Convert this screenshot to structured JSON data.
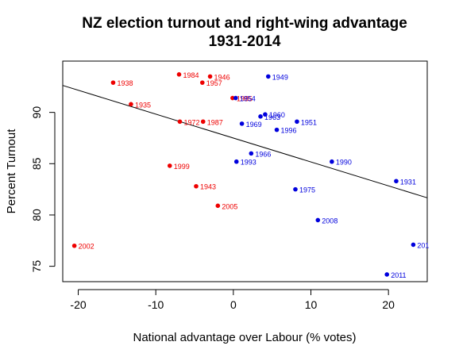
{
  "chart_data": {
    "type": "scatter",
    "title": "NZ election turnout and right-wing advantage",
    "subtitle": "1931-2014",
    "xlabel": "National advantage over Labour (% votes)",
    "ylabel": "Percent Turnout",
    "xlim": [
      -22,
      25
    ],
    "ylim": [
      73.5,
      95.0
    ],
    "xticks": [
      -20,
      -10,
      0,
      10,
      20
    ],
    "yticks": [
      75,
      80,
      85,
      90
    ],
    "grid": false,
    "legend": "none",
    "colors": {
      "left": "#ee0000",
      "right": "#0000dd",
      "line": "#000000"
    },
    "trend_line": {
      "intercept": 87.5,
      "slope": -0.233
    },
    "points": [
      {
        "label": "1984",
        "x": -7.0,
        "y": 93.7,
        "group": "left"
      },
      {
        "label": "1946",
        "x": -3.0,
        "y": 93.5,
        "group": "left"
      },
      {
        "label": "1938",
        "x": -15.5,
        "y": 92.9,
        "group": "left"
      },
      {
        "label": "1957",
        "x": -4.0,
        "y": 92.9,
        "group": "left"
      },
      {
        "label": "1935",
        "x": -13.2,
        "y": 90.8,
        "group": "left"
      },
      {
        "label": "1972",
        "x": -6.9,
        "y": 89.1,
        "group": "left"
      },
      {
        "label": "1987",
        "x": -3.9,
        "y": 89.1,
        "group": "left"
      },
      {
        "label": "1999",
        "x": -8.2,
        "y": 84.8,
        "group": "left"
      },
      {
        "label": "1943",
        "x": -4.8,
        "y": 82.8,
        "group": "left"
      },
      {
        "label": "2005",
        "x": -2.0,
        "y": 80.9,
        "group": "left"
      },
      {
        "label": "2002",
        "x": -20.5,
        "y": 77.0,
        "group": "left"
      },
      {
        "label": "1985",
        "x": -0.1,
        "y": 91.4,
        "group": "left"
      },
      {
        "label": "1949",
        "x": 4.5,
        "y": 93.5,
        "group": "right"
      },
      {
        "label": "1954",
        "x": 0.3,
        "y": 91.4,
        "group": "right"
      },
      {
        "label": "1963",
        "x": 3.5,
        "y": 89.6,
        "group": "right"
      },
      {
        "label": "1960",
        "x": 4.1,
        "y": 89.8,
        "group": "right"
      },
      {
        "label": "1951",
        "x": 8.2,
        "y": 89.1,
        "group": "right"
      },
      {
        "label": "1969",
        "x": 1.1,
        "y": 88.9,
        "group": "right"
      },
      {
        "label": "1996",
        "x": 5.6,
        "y": 88.3,
        "group": "right"
      },
      {
        "label": "1966",
        "x": 2.3,
        "y": 86.0,
        "group": "right"
      },
      {
        "label": "1993",
        "x": 0.4,
        "y": 85.2,
        "group": "right"
      },
      {
        "label": "1990",
        "x": 12.7,
        "y": 85.2,
        "group": "right"
      },
      {
        "label": "1931",
        "x": 21.0,
        "y": 83.3,
        "group": "right"
      },
      {
        "label": "1975",
        "x": 8.0,
        "y": 82.5,
        "group": "right"
      },
      {
        "label": "2008",
        "x": 10.9,
        "y": 79.5,
        "group": "right"
      },
      {
        "label": "201",
        "x": 23.2,
        "y": 77.1,
        "group": "right"
      },
      {
        "label": "2011",
        "x": 19.8,
        "y": 74.2,
        "group": "right"
      }
    ]
  }
}
